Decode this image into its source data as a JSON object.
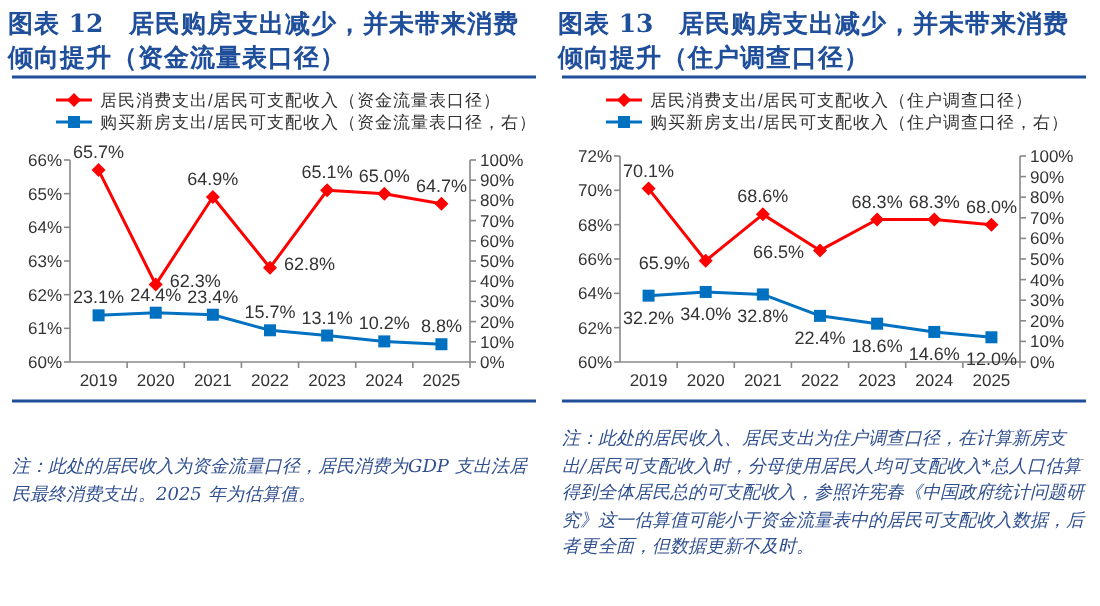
{
  "chart_data": [
    {
      "type": "line",
      "title": "图表 12　居民购房支出减少，并未带来消费倾向提升（资金流量表口径）",
      "categories": [
        "2019",
        "2020",
        "2021",
        "2022",
        "2023",
        "2024",
        "2025"
      ],
      "series": [
        {
          "name": "居民消费支出/居民可支配收入（资金流量表口径）",
          "color": "#ff0000",
          "marker": "diamond",
          "values": [
            65.7,
            62.3,
            64.9,
            62.8,
            65.1,
            65.0,
            64.7
          ],
          "value_labels": [
            "65.7%",
            "62.3%",
            "64.9%",
            "62.8%",
            "65.1%",
            "65.0%",
            "64.7%"
          ]
        },
        {
          "name": "购买新房支出/居民可支配收入（资金流量表口径，右）",
          "color": "#0070c0",
          "marker": "square",
          "axis": "y2",
          "values": [
            23.1,
            24.4,
            23.4,
            15.7,
            13.1,
            10.2,
            8.8
          ],
          "value_labels": [
            "23.1%",
            "24.4%",
            "23.4%",
            "15.7%",
            "13.1%",
            "10.2%",
            "8.8%"
          ]
        }
      ],
      "ylim": [
        60,
        66
      ],
      "yticks": [
        {
          "value": 60,
          "label": "60%"
        },
        {
          "value": 61,
          "label": "61%"
        },
        {
          "value": 62,
          "label": "62%"
        },
        {
          "value": 63,
          "label": "63%"
        },
        {
          "value": 64,
          "label": "64%"
        },
        {
          "value": 65,
          "label": "65%"
        },
        {
          "value": 66,
          "label": "66%"
        }
      ],
      "y2lim": [
        0,
        100
      ],
      "y2ticks": [
        {
          "value": 0,
          "label": "0%"
        },
        {
          "value": 10,
          "label": "10%"
        },
        {
          "value": 20,
          "label": "20%"
        },
        {
          "value": 30,
          "label": "30%"
        },
        {
          "value": 40,
          "label": "40%"
        },
        {
          "value": 50,
          "label": "50%"
        },
        {
          "value": 60,
          "label": "60%"
        },
        {
          "value": 70,
          "label": "70%"
        },
        {
          "value": 80,
          "label": "80%"
        },
        {
          "value": 90,
          "label": "90%"
        },
        {
          "value": 100,
          "label": "100%"
        }
      ],
      "legend": "top",
      "grid": false,
      "annotations": [
        "注：此处的居民收入为资金流量口径，居民消费为GDP 支出法居民最终消费支出。2025 年为估算值。"
      ]
    },
    {
      "type": "line",
      "title": "图表 13　居民购房支出减少，并未带来消费倾向提升（住户调查口径）",
      "categories": [
        "2019",
        "2020",
        "2021",
        "2022",
        "2023",
        "2024",
        "2025"
      ],
      "series": [
        {
          "name": "居民消费支出/居民可支配收入（住户调查口径）",
          "color": "#ff0000",
          "marker": "diamond",
          "values": [
            70.1,
            65.9,
            68.6,
            66.5,
            68.3,
            68.3,
            68.0
          ],
          "value_labels": [
            "70.1%",
            "65.9%",
            "68.6%",
            "66.5%",
            "68.3%",
            "68.3%",
            "68.0%"
          ]
        },
        {
          "name": "购买新房支出/居民可支配收入（住户调查口径，右）",
          "color": "#0070c0",
          "marker": "square",
          "axis": "y2",
          "values": [
            32.2,
            34.0,
            32.8,
            22.4,
            18.6,
            14.6,
            12.0
          ],
          "value_labels": [
            "32.2%",
            "34.0%",
            "32.8%",
            "22.4%",
            "18.6%",
            "14.6%",
            "12.0%"
          ]
        }
      ],
      "ylim": [
        60,
        72
      ],
      "yticks": [
        {
          "value": 60,
          "label": "60%"
        },
        {
          "value": 62,
          "label": "62%"
        },
        {
          "value": 64,
          "label": "64%"
        },
        {
          "value": 66,
          "label": "66%"
        },
        {
          "value": 68,
          "label": "68%"
        },
        {
          "value": 70,
          "label": "70%"
        },
        {
          "value": 72,
          "label": "72%"
        }
      ],
      "y2lim": [
        0,
        100
      ],
      "y2ticks": [
        {
          "value": 0,
          "label": "0%"
        },
        {
          "value": 10,
          "label": "10%"
        },
        {
          "value": 20,
          "label": "20%"
        },
        {
          "value": 30,
          "label": "30%"
        },
        {
          "value": 40,
          "label": "40%"
        },
        {
          "value": 50,
          "label": "50%"
        },
        {
          "value": 60,
          "label": "60%"
        },
        {
          "value": 70,
          "label": "70%"
        },
        {
          "value": 80,
          "label": "80%"
        },
        {
          "value": 90,
          "label": "90%"
        },
        {
          "value": 100,
          "label": "100%"
        }
      ],
      "legend": "top",
      "grid": false,
      "annotations": [
        "注：此处的居民收入、居民支出为住户调查口径，在计算新房支出/居民可支配收入时，分母使用居民人均可支配收入*总人口估算得到全体居民总的可支配收入，参照许宪春《中国政府统计问题研究》这一估算值可能小于资金流量表中的居民可支配收入数据，后者更全面，但数据更新不及时。"
      ]
    }
  ]
}
